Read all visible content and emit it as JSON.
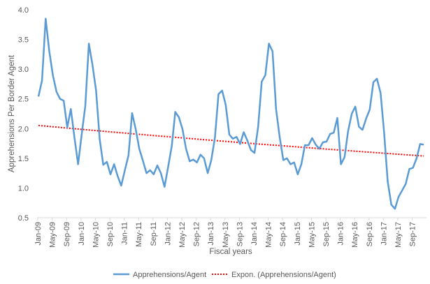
{
  "chart_data": {
    "type": "line",
    "title": "",
    "xlabel": "Fiscal years",
    "ylabel": "Apprehensions Per Border Agent",
    "ylim": [
      0.5,
      4.0
    ],
    "yticks": [
      "0.5",
      "1.0",
      "1.5",
      "2.0",
      "2.5",
      "3.0",
      "3.5",
      "4.0"
    ],
    "grid": false,
    "legend": "bottom",
    "x_tick_labels": [
      "Jan-09",
      "May-09",
      "Sep-09",
      "Jan-10",
      "May-10",
      "Sep-10",
      "Jan-11",
      "May-11",
      "Sep-11",
      "Jan-12",
      "May-12",
      "Sep-12",
      "Jan-13",
      "May-13",
      "Sep-13",
      "Jan-14",
      "May-14",
      "Sep-14",
      "Jan-15",
      "May-15",
      "Sep-15",
      "Jan-16",
      "May-16",
      "Sep-16",
      "Jan-17",
      "May-17",
      "Sep-17"
    ],
    "x_range": [
      "Jan-09",
      "Dec-17"
    ],
    "series": [
      {
        "name": "Apprehensions/Agent",
        "color": "#5b9bd5",
        "style": "solid",
        "values": [
          2.54,
          2.81,
          3.85,
          3.3,
          2.9,
          2.62,
          2.5,
          2.47,
          2.02,
          2.33,
          1.85,
          1.4,
          1.9,
          2.38,
          3.43,
          3.07,
          2.64,
          1.82,
          1.39,
          1.44,
          1.23,
          1.4,
          1.2,
          1.04,
          1.3,
          1.55,
          2.26,
          1.99,
          1.66,
          1.46,
          1.25,
          1.3,
          1.23,
          1.38,
          1.25,
          1.02,
          1.35,
          1.7,
          2.28,
          2.19,
          1.99,
          1.66,
          1.45,
          1.48,
          1.43,
          1.56,
          1.5,
          1.25,
          1.47,
          1.85,
          2.58,
          2.64,
          2.4,
          1.9,
          1.83,
          1.86,
          1.74,
          1.94,
          1.8,
          1.64,
          1.59,
          2.03,
          2.79,
          2.9,
          3.43,
          3.3,
          2.32,
          1.85,
          1.47,
          1.5,
          1.4,
          1.43,
          1.23,
          1.4,
          1.72,
          1.72,
          1.84,
          1.73,
          1.66,
          1.77,
          1.78,
          1.91,
          1.93,
          2.18,
          1.4,
          1.52,
          1.96,
          2.25,
          2.37,
          2.03,
          1.98,
          2.17,
          2.32,
          2.78,
          2.84,
          2.6,
          1.93,
          1.11,
          0.72,
          0.65,
          0.85,
          0.96,
          1.07,
          1.32,
          1.34,
          1.5,
          1.74,
          1.73
        ]
      },
      {
        "name": "Expon. (Apprehensions/Agent)",
        "color": "#ff0000",
        "style": "dotted",
        "trendline": "exponential"
      }
    ]
  }
}
